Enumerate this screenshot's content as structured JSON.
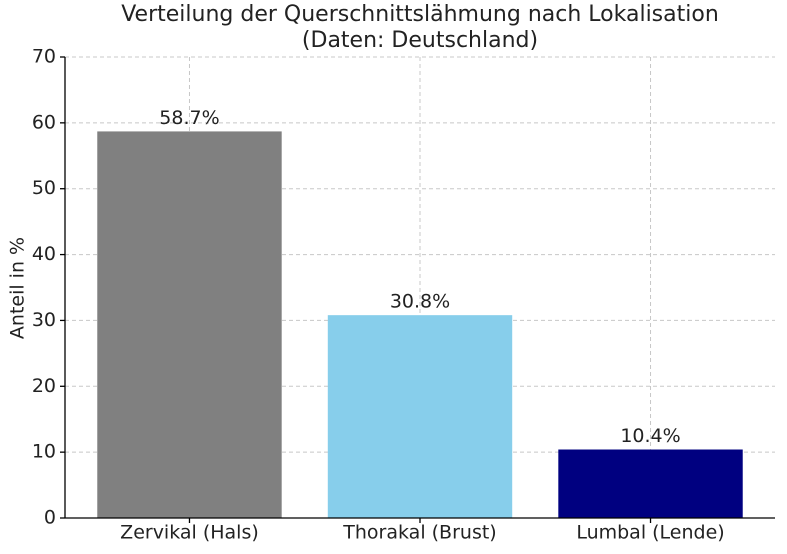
{
  "chart_data": {
    "type": "bar",
    "title": "Verteilung der Querschnittslähmung nach Lokalisation",
    "subtitle": "(Daten: Deutschland)",
    "y_label": "Anteil in %",
    "categories": [
      "Zervikal (Hals)",
      "Thorakal (Brust)",
      "Lumbal (Lende)"
    ],
    "values": [
      58.7,
      30.8,
      10.4
    ],
    "value_labels": [
      "58.7%",
      "30.8%",
      "10.4%"
    ],
    "colors": [
      "#808080",
      "#87ceeb",
      "#000080"
    ],
    "ylim": [
      0,
      70
    ],
    "yticks": [
      0,
      10,
      20,
      30,
      40,
      50,
      60,
      70
    ],
    "grid": true
  }
}
